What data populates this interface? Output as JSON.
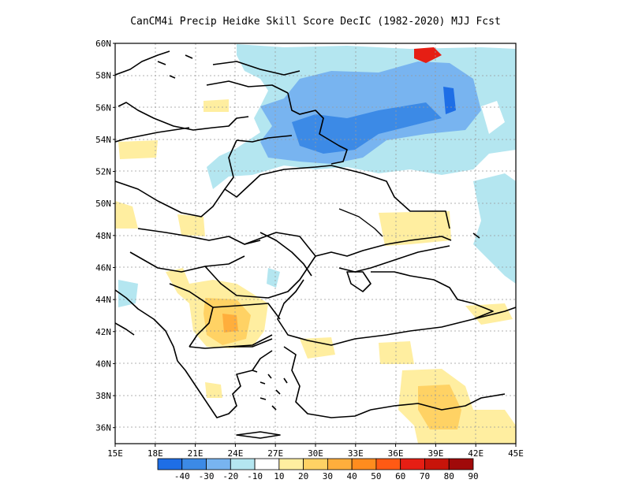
{
  "title": "CanCM4i Precip Heidke Skill Score DecIC (1982-2020) MJJ Fcst",
  "map": {
    "lon_range": [
      15,
      45
    ],
    "lat_range": [
      35,
      60
    ],
    "lon_ticks": [
      "15E",
      "18E",
      "21E",
      "24E",
      "27E",
      "30E",
      "33E",
      "36E",
      "39E",
      "42E",
      "45E"
    ],
    "lat_ticks": [
      "36N",
      "38N",
      "40N",
      "42N",
      "44N",
      "46N",
      "48N",
      "50N",
      "52N",
      "54N",
      "56N",
      "58N",
      "60N"
    ],
    "gridlines": true,
    "ocean_color": "#ffffff",
    "land_color": "#ffffff",
    "border_color": "#000000"
  },
  "colorbar": {
    "labels": [
      "-40",
      "-30",
      "-20",
      "-10",
      "10",
      "20",
      "30",
      "40",
      "50",
      "60",
      "70",
      "80",
      "90"
    ],
    "colors": [
      "#1e6ee6",
      "#3c8ae6",
      "#78b4f0",
      "#b4e6f0",
      "#ffffff",
      "#ffeea0",
      "#ffd264",
      "#ffae3c",
      "#ff8c1e",
      "#ff5a14",
      "#e61e14",
      "#c8140a",
      "#a00a0a"
    ]
  }
}
